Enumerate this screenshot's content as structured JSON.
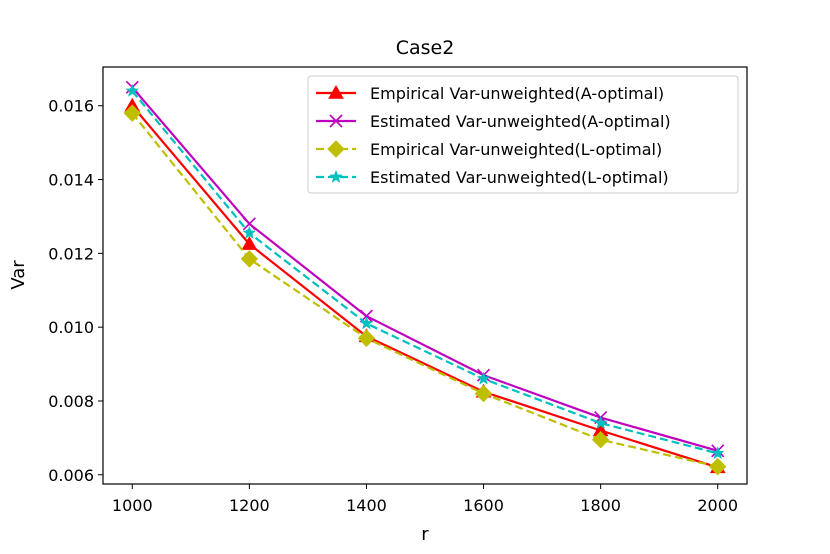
{
  "chart_data": {
    "type": "line",
    "title": "Case2",
    "xlabel": "r",
    "ylabel": "Var",
    "x": [
      1000,
      1200,
      1400,
      1600,
      1800,
      2000
    ],
    "xlim": [
      950,
      2050
    ],
    "ylim": [
      0.00575,
      0.01705
    ],
    "xticks": [
      1000,
      1200,
      1400,
      1600,
      1800,
      2000
    ],
    "yticks": [
      0.006,
      0.008,
      0.01,
      0.012,
      0.014,
      0.016
    ],
    "ytick_labels": [
      "0.006",
      "0.008",
      "0.010",
      "0.012",
      "0.014",
      "0.016"
    ],
    "legend_position": "top-right",
    "grid": false,
    "series": [
      {
        "name": "Empirical Var-unweighted(A-optimal)",
        "values": [
          0.016,
          0.01225,
          0.00975,
          0.00825,
          0.0072,
          0.0062
        ],
        "color": "#ff0000",
        "line_style": "solid",
        "marker": "triangle"
      },
      {
        "name": "Estimated Var-unweighted(A-optimal)",
        "values": [
          0.0165,
          0.0128,
          0.0103,
          0.0087,
          0.00755,
          0.00665
        ],
        "color": "#bf00bf",
        "line_style": "solid",
        "marker": "x"
      },
      {
        "name": "Empirical Var-unweighted(L-optimal)",
        "values": [
          0.0158,
          0.01185,
          0.0097,
          0.0082,
          0.00695,
          0.00622
        ],
        "color": "#bfbf00",
        "line_style": "dashed",
        "marker": "diamond"
      },
      {
        "name": "Estimated Var-unweighted(L-optimal)",
        "values": [
          0.0164,
          0.01255,
          0.0101,
          0.0086,
          0.0074,
          0.00658
        ],
        "color": "#00bfbf",
        "line_style": "dashed",
        "marker": "star"
      }
    ]
  }
}
